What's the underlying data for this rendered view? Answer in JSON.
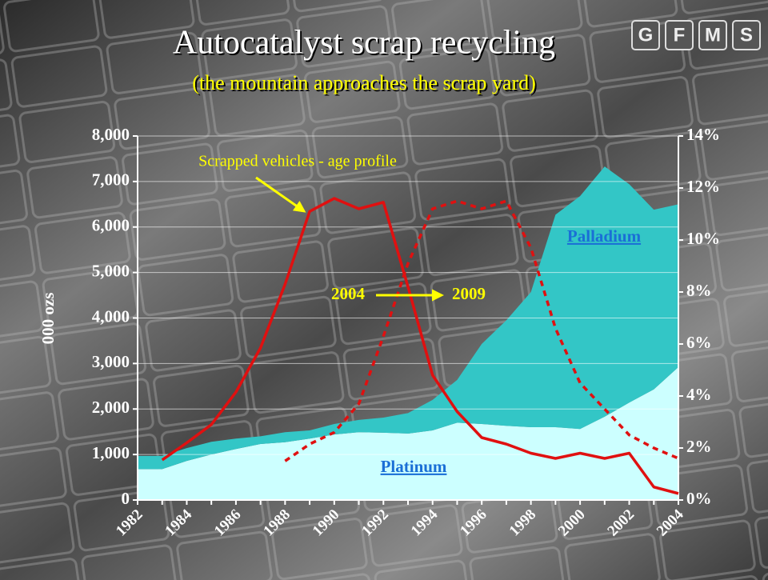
{
  "chart_data": {
    "type": "area",
    "title": "Autocatalyst scrap recycling",
    "subtitle": "(the mountain approaches the scrap yard)",
    "logo": [
      "G",
      "F",
      "M",
      "S"
    ],
    "y_label": "000 ozs",
    "annotations": [
      "Scrapped vehicles - age profile",
      "2004",
      "2009"
    ],
    "categories": [
      "1982",
      null,
      "1984",
      null,
      "1986",
      null,
      "1988",
      null,
      "1990",
      null,
      "1992",
      null,
      "1994",
      null,
      "1996",
      null,
      "1998",
      null,
      "2000",
      null,
      "2002",
      null,
      "2004"
    ],
    "series": [
      {
        "name": "Platinum",
        "color": "#ccffff",
        "values": [
          680,
          680,
          860,
          1000,
          1120,
          1230,
          1270,
          1350,
          1440,
          1490,
          1480,
          1460,
          1530,
          1700,
          1670,
          1630,
          1600,
          1600,
          1560,
          1830,
          2140,
          2430,
          2920
        ]
      },
      {
        "name": "Palladium",
        "color": "#33c6c6",
        "values": [
          290,
          290,
          280,
          280,
          230,
          170,
          220,
          180,
          230,
          270,
          330,
          450,
          670,
          940,
          1760,
          2320,
          2970,
          4670,
          5120,
          5500,
          4800,
          3950,
          3580
        ]
      },
      {
        "type": "line",
        "axis": "y2",
        "color": "#e01010",
        "dash": false,
        "values": [
          null,
          1.54,
          2.2,
          2.9,
          4.15,
          5.85,
          8.3,
          11.1,
          11.6,
          11.2,
          11.45,
          8.2,
          4.8,
          3.4,
          2.4,
          2.15,
          1.8,
          1.6,
          1.8,
          1.6,
          1.8,
          0.5,
          0.25
        ]
      },
      {
        "type": "line",
        "axis": "y2",
        "color": "#e01010",
        "dash": true,
        "values": [
          null,
          null,
          null,
          null,
          null,
          null,
          1.5,
          2.15,
          2.6,
          3.7,
          6.3,
          9.1,
          11.2,
          11.5,
          11.2,
          11.5,
          9.7,
          6.6,
          4.5,
          3.5,
          2.5,
          2.0,
          1.6
        ]
      }
    ],
    "ylim": [
      0,
      8000
    ],
    "yticks": [
      0,
      {
        "value": 1000,
        "label": "1,000"
      },
      {
        "value": 2000,
        "label": "2,000"
      },
      {
        "value": 3000,
        "label": "3,000"
      },
      {
        "value": 4000,
        "label": "4,000"
      },
      {
        "value": 5000,
        "label": "5,000"
      },
      {
        "value": 6000,
        "label": "6,000"
      },
      {
        "value": 7000,
        "label": "7,000"
      },
      {
        "value": 8000,
        "label": "8,000"
      }
    ],
    "y2lim": [
      0,
      14
    ],
    "y2ticks": [
      {
        "value": 0,
        "label": "0%"
      },
      {
        "value": 2,
        "label": "2%"
      },
      {
        "value": 4,
        "label": "4%"
      },
      {
        "value": 6,
        "label": "6%"
      },
      {
        "value": 8,
        "label": "8%"
      },
      {
        "value": 10,
        "label": "10%"
      },
      {
        "value": 12,
        "label": "12%"
      },
      {
        "value": 14,
        "label": "14%"
      }
    ],
    "grid": true
  }
}
